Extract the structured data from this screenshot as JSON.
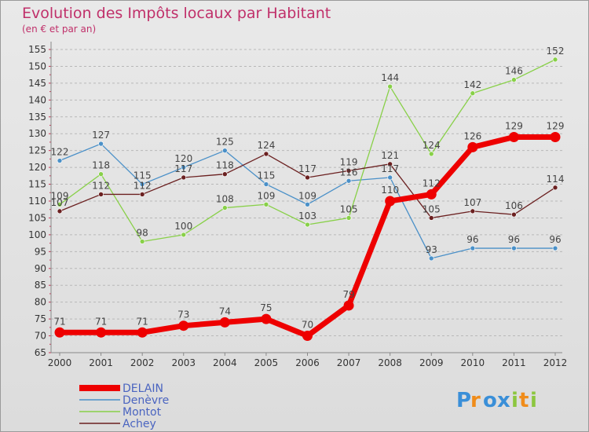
{
  "chart_data": {
    "type": "line",
    "title": "Evolution des Impôts locaux par Habitant",
    "subtitle": "(en € et par an)",
    "xlabel": "",
    "ylabel": "",
    "categories": [
      "2000",
      "2001",
      "2002",
      "2003",
      "2004",
      "2005",
      "2006",
      "2007",
      "2008",
      "2009",
      "2010",
      "2011",
      "2012"
    ],
    "ylim": [
      65,
      155
    ],
    "ytick_step": 5,
    "grid": "horizontal dashed",
    "legend_position": "bottom-left",
    "series": [
      {
        "name": "Denèvre",
        "color": "#4a90c8",
        "values": [
          122,
          127,
          115,
          120,
          125,
          115,
          109,
          116,
          117,
          93,
          96,
          96,
          96
        ],
        "labels": [
          "122",
          "127",
          "115",
          "120",
          "125",
          "115",
          "109",
          "116",
          "117",
          "93",
          "96",
          "96",
          "96"
        ]
      },
      {
        "name": "Montot",
        "color": "#88d048",
        "values": [
          109,
          118,
          98,
          100,
          108,
          109,
          103,
          105,
          144,
          124,
          142,
          146,
          152
        ],
        "labels": [
          "109",
          "118",
          "98",
          "100",
          "108",
          "109",
          "103",
          "105",
          "144",
          "124",
          "142",
          "146",
          "152"
        ]
      },
      {
        "name": "Achey",
        "color": "#6b2020",
        "values": [
          107,
          112,
          112,
          117,
          118,
          124,
          117,
          119,
          121,
          105,
          107,
          106,
          114
        ],
        "labels": [
          "107",
          "112",
          "112",
          "117",
          "118",
          "124",
          "117",
          "119",
          "121",
          "105",
          "107",
          "106",
          "114"
        ]
      },
      {
        "name": "DELAIN",
        "color": "#ee0000",
        "values": [
          71,
          71,
          71,
          73,
          74,
          75,
          70,
          79,
          110,
          112,
          126,
          129,
          129
        ],
        "labels": [
          "71",
          "71",
          "71",
          "73",
          "74",
          "75",
          "70",
          "79",
          "110",
          "112",
          "126",
          "129",
          "129"
        ]
      }
    ]
  },
  "legend": {
    "items": [
      {
        "name": "DELAIN",
        "color": "#ee0000",
        "text_color": "#4a64c0"
      },
      {
        "name": "Denèvre",
        "color": "#4a90c8",
        "text_color": "#4a64c0"
      },
      {
        "name": "Montot",
        "color": "#88d048",
        "text_color": "#4a64c0"
      },
      {
        "name": "Achey",
        "color": "#6b2020",
        "text_color": "#4a64c0"
      }
    ]
  },
  "logo": {
    "letters": [
      "P",
      "r",
      "o",
      "x",
      "i",
      "t",
      "i"
    ],
    "colors": [
      "#3a8fd8",
      "#f08c1a",
      "#3a8fd8",
      "#3a8fd8",
      "#8cc63f",
      "#f08c1a",
      "#8cc63f"
    ]
  }
}
